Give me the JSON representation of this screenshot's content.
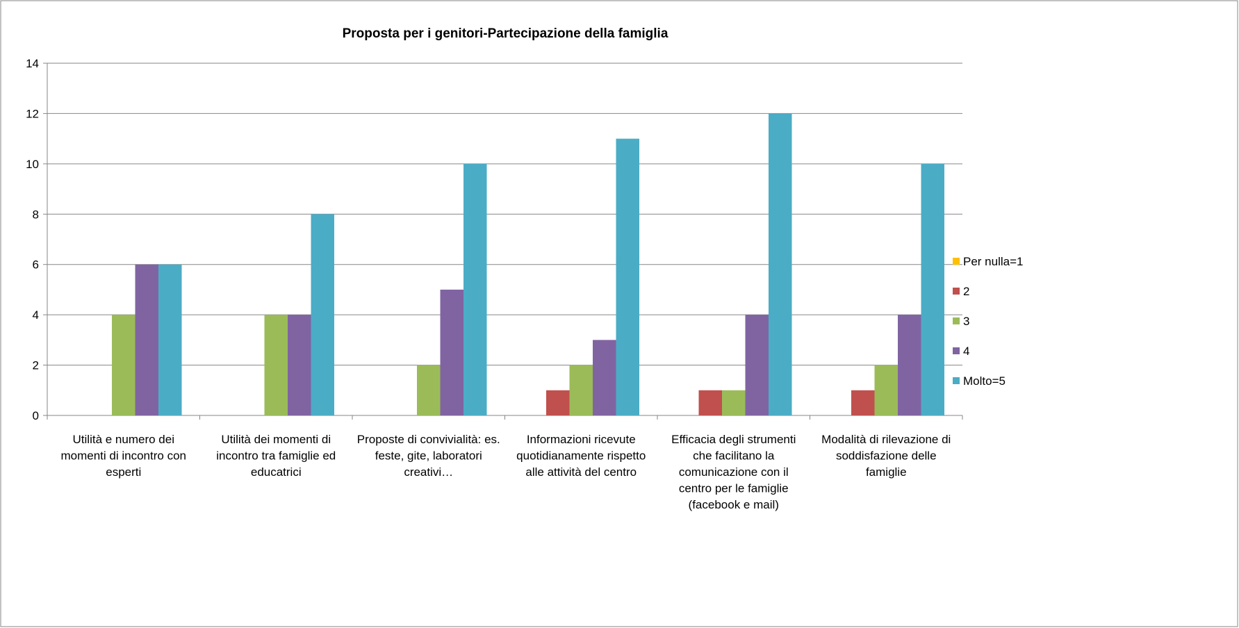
{
  "chart_data": {
    "type": "bar",
    "title": "Proposta per i genitori-Partecipazione della famiglia",
    "categories": [
      "Utilità e numero dei momenti di incontro con esperti",
      "Utilità dei momenti di incontro tra famiglie ed educatrici",
      "Proposte di convivialità: es. feste, gite, laboratori creativi…",
      "Informazioni ricevute quotidianamente rispetto alle attività del centro",
      "Efficacia degli strumenti che facilitano la comunicazione con il centro per le famiglie (facebook e mail)",
      "Modalità di rilevazione di soddisfazione delle famiglie"
    ],
    "series": [
      {
        "name": "Per nulla=1",
        "color": "#ffc000",
        "values": [
          0,
          0,
          0,
          0,
          0,
          0
        ]
      },
      {
        "name": "2",
        "color": "#c0504d",
        "values": [
          0,
          0,
          0,
          1,
          1,
          1
        ]
      },
      {
        "name": "3",
        "color": "#9bbb59",
        "values": [
          4,
          4,
          2,
          2,
          1,
          2
        ]
      },
      {
        "name": "4",
        "color": "#8064a2",
        "values": [
          6,
          4,
          5,
          3,
          4,
          4
        ]
      },
      {
        "name": "Molto=5",
        "color": "#4bacc6",
        "values": [
          6,
          8,
          10,
          11,
          12,
          10
        ]
      }
    ],
    "ylim": [
      0,
      14
    ],
    "yticks": [
      0,
      2,
      4,
      6,
      8,
      10,
      12,
      14
    ],
    "grid": true,
    "legend": "right"
  }
}
